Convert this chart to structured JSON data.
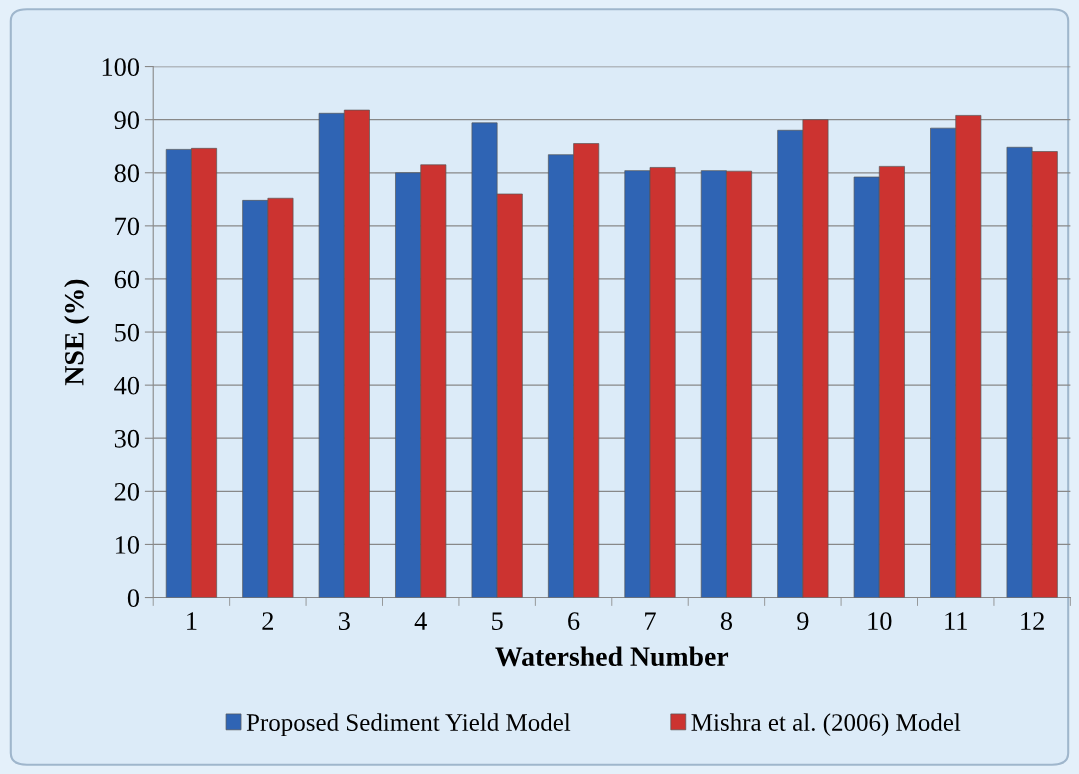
{
  "chart_data": {
    "type": "bar",
    "xlabel": "Watershed Number",
    "ylabel": "NSE (%)",
    "categories": [
      "1",
      "2",
      "3",
      "4",
      "5",
      "6",
      "7",
      "8",
      "9",
      "10",
      "11",
      "12"
    ],
    "series": [
      {
        "name": "Proposed Sediment Yield Model",
        "color": "#2f64b4",
        "values": [
          84.4,
          74.8,
          91.2,
          80.0,
          89.4,
          83.4,
          80.4,
          80.4,
          88.0,
          79.2,
          88.4,
          84.8
        ]
      },
      {
        "name": "Mishra et al. (2006) Model",
        "color": "#cc3330",
        "values": [
          84.6,
          75.2,
          91.8,
          81.5,
          76.0,
          85.5,
          81.0,
          80.3,
          90.0,
          81.2,
          90.8,
          84.0
        ]
      }
    ],
    "ylim": [
      0,
      100
    ],
    "yticks": [
      0,
      10,
      20,
      30,
      40,
      50,
      60,
      70,
      80,
      90,
      100
    ],
    "grid": "y",
    "legend": "bottom"
  }
}
